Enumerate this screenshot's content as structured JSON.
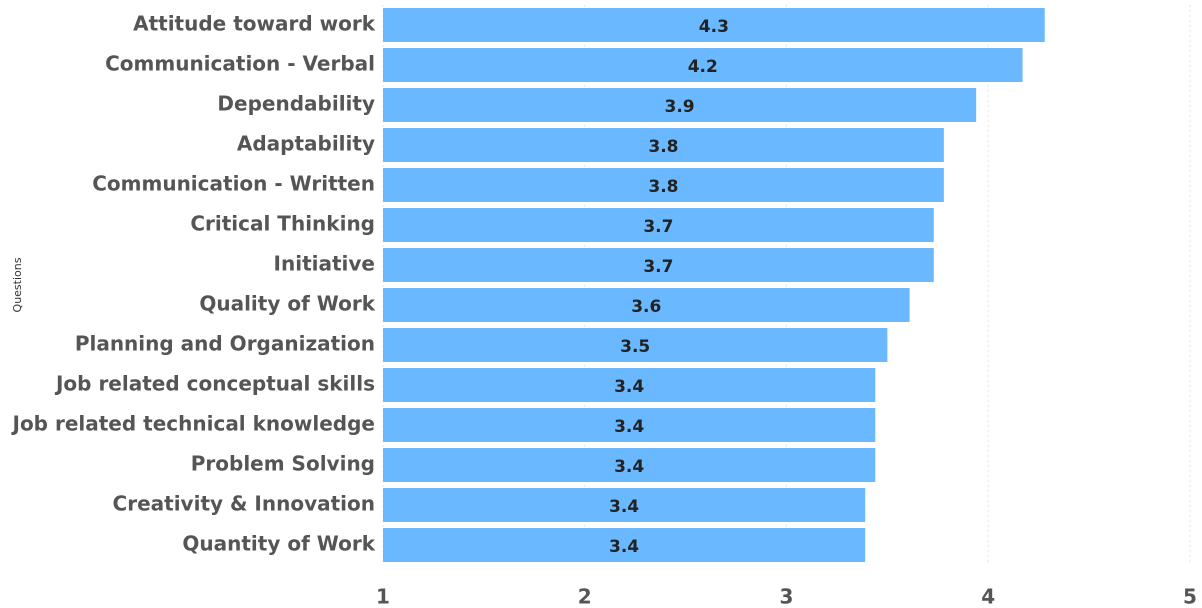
{
  "chart_data": {
    "type": "bar",
    "orientation": "horizontal",
    "y_label": "Questions",
    "categories": [
      "Attitude toward work",
      "Communication - Verbal",
      "Dependability",
      "Adaptability",
      "Communication - Written",
      "Critical Thinking",
      "Initiative",
      "Quality of Work",
      "Planning and Organization",
      "Job related conceptual skills ",
      "Job related technical knowledge",
      "Problem Solving",
      "Creativity & Innovation",
      "Quantity of Work"
    ],
    "values": [
      4.28,
      4.17,
      3.94,
      3.78,
      3.78,
      3.73,
      3.73,
      3.61,
      3.5,
      3.44,
      3.44,
      3.44,
      3.39,
      3.39
    ],
    "value_labels": [
      "4.3",
      "4.2",
      "3.9",
      "3.8",
      "3.8",
      "3.7",
      "3.7",
      "3.6",
      "3.5",
      "3.4",
      "3.4",
      "3.4",
      "3.4",
      "3.4"
    ],
    "color": "#6ab8ff",
    "xlim": [
      1,
      5
    ],
    "xticks": [
      1,
      2,
      3,
      4,
      5
    ],
    "grid": true
  }
}
